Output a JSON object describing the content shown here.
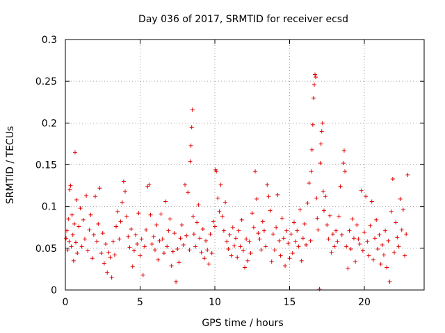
{
  "chart_data": {
    "type": "scatter",
    "title": "Day 036 of 2017, SRMTID for receiver ecsd",
    "xlabel": "GPS time / hours",
    "ylabel": "SRMTID / TECUs",
    "xlim": [
      0,
      24
    ],
    "ylim": [
      0,
      0.3
    ],
    "xticks": [
      0,
      5,
      10,
      15,
      20
    ],
    "xtick_labels": [
      "0",
      "5",
      "10",
      "15",
      "20"
    ],
    "yticks": [
      0,
      0.05,
      0.1,
      0.15,
      0.2,
      0.25,
      0.3
    ],
    "ytick_labels": [
      "0",
      "0.05",
      "0.1",
      "0.15",
      "0.2",
      "0.25",
      "0.3"
    ],
    "grid": true,
    "marker": "+",
    "marker_color": "#e00000",
    "series": [
      {
        "name": "SRMTID",
        "points": [
          [
            0.05,
            0.062
          ],
          [
            0.1,
            0.071
          ],
          [
            0.15,
            0.048
          ],
          [
            0.2,
            0.085
          ],
          [
            0.25,
            0.058
          ],
          [
            0.3,
            0.12
          ],
          [
            0.35,
            0.125
          ],
          [
            0.4,
            0.052
          ],
          [
            0.45,
            0.09
          ],
          [
            0.5,
            0.066
          ],
          [
            0.55,
            0.035
          ],
          [
            0.6,
            0.079
          ],
          [
            0.65,
            0.165
          ],
          [
            0.7,
            0.057
          ],
          [
            0.75,
            0.108
          ],
          [
            0.8,
            0.044
          ],
          [
            0.9,
            0.076
          ],
          [
            1.0,
            0.098
          ],
          [
            1.1,
            0.052
          ],
          [
            1.2,
            0.084
          ],
          [
            1.3,
            0.061
          ],
          [
            1.4,
            0.113
          ],
          [
            1.5,
            0.047
          ],
          [
            1.6,
            0.072
          ],
          [
            1.7,
            0.09
          ],
          [
            1.8,
            0.038
          ],
          [
            1.9,
            0.066
          ],
          [
            2.0,
            0.112
          ],
          [
            2.1,
            0.058
          ],
          [
            2.2,
            0.079
          ],
          [
            2.3,
            0.122
          ],
          [
            2.4,
            0.044
          ],
          [
            2.5,
            0.068
          ],
          [
            2.6,
            0.032
          ],
          [
            2.7,
            0.055
          ],
          [
            2.8,
            0.021
          ],
          [
            2.9,
            0.045
          ],
          [
            3.0,
            0.039
          ],
          [
            3.1,
            0.015
          ],
          [
            3.2,
            0.058
          ],
          [
            3.3,
            0.042
          ],
          [
            3.4,
            0.076
          ],
          [
            3.5,
            0.094
          ],
          [
            3.6,
            0.061
          ],
          [
            3.7,
            0.082
          ],
          [
            3.8,
            0.105
          ],
          [
            3.9,
            0.13
          ],
          [
            4.0,
            0.118
          ],
          [
            4.1,
            0.088
          ],
          [
            4.2,
            0.064
          ],
          [
            4.3,
            0.051
          ],
          [
            4.4,
            0.073
          ],
          [
            4.5,
            0.028
          ],
          [
            4.6,
            0.047
          ],
          [
            4.7,
            0.066
          ],
          [
            4.8,
            0.055
          ],
          [
            4.9,
            0.092
          ],
          [
            5.0,
            0.041
          ],
          [
            5.1,
            0.061
          ],
          [
            5.2,
            0.018
          ],
          [
            5.3,
            0.052
          ],
          [
            5.4,
            0.072
          ],
          [
            5.5,
            0.124
          ],
          [
            5.6,
            0.126
          ],
          [
            5.7,
            0.09
          ],
          [
            5.8,
            0.055
          ],
          [
            5.9,
            0.064
          ],
          [
            6.0,
            0.048
          ],
          [
            6.1,
            0.078
          ],
          [
            6.2,
            0.036
          ],
          [
            6.3,
            0.059
          ],
          [
            6.4,
            0.091
          ],
          [
            6.5,
            0.061
          ],
          [
            6.6,
            0.044
          ],
          [
            6.7,
            0.106
          ],
          [
            6.8,
            0.052
          ],
          [
            6.9,
            0.071
          ],
          [
            7.0,
            0.085
          ],
          [
            7.1,
            0.029
          ],
          [
            7.2,
            0.046
          ],
          [
            7.3,
            0.068
          ],
          [
            7.4,
            0.01
          ],
          [
            7.5,
            0.049
          ],
          [
            7.6,
            0.033
          ],
          [
            7.7,
            0.062
          ],
          [
            7.8,
            0.078
          ],
          [
            7.9,
            0.054
          ],
          [
            8.0,
            0.126
          ],
          [
            8.1,
            0.065
          ],
          [
            8.2,
            0.117
          ],
          [
            8.3,
            0.048
          ],
          [
            8.35,
            0.154
          ],
          [
            8.4,
            0.173
          ],
          [
            8.45,
            0.195
          ],
          [
            8.5,
            0.216
          ],
          [
            8.55,
            0.088
          ],
          [
            8.6,
            0.067
          ],
          [
            8.7,
            0.052
          ],
          [
            8.8,
            0.081
          ],
          [
            8.9,
            0.102
          ],
          [
            9.0,
            0.062
          ],
          [
            9.1,
            0.045
          ],
          [
            9.2,
            0.073
          ],
          [
            9.3,
            0.038
          ],
          [
            9.4,
            0.059
          ],
          [
            9.5,
            0.048
          ],
          [
            9.6,
            0.031
          ],
          [
            9.7,
            0.067
          ],
          [
            9.8,
            0.044
          ],
          [
            9.9,
            0.082
          ],
          [
            10.0,
            0.076
          ],
          [
            10.05,
            0.144
          ],
          [
            10.1,
            0.142
          ],
          [
            10.2,
            0.11
          ],
          [
            10.3,
            0.094
          ],
          [
            10.4,
            0.126
          ],
          [
            10.5,
            0.088
          ],
          [
            10.6,
            0.071
          ],
          [
            10.7,
            0.105
          ],
          [
            10.8,
            0.058
          ],
          [
            10.9,
            0.049
          ],
          [
            11.0,
            0.066
          ],
          [
            11.1,
            0.041
          ],
          [
            11.2,
            0.075
          ],
          [
            11.3,
            0.053
          ],
          [
            11.4,
            0.062
          ],
          [
            11.5,
            0.039
          ],
          [
            11.6,
            0.071
          ],
          [
            11.7,
            0.052
          ],
          [
            11.8,
            0.084
          ],
          [
            11.9,
            0.047
          ],
          [
            12.0,
            0.027
          ],
          [
            12.1,
            0.061
          ],
          [
            12.2,
            0.035
          ],
          [
            12.3,
            0.058
          ],
          [
            12.4,
            0.044
          ],
          [
            12.5,
            0.092
          ],
          [
            12.6,
            0.075
          ],
          [
            12.7,
            0.142
          ],
          [
            12.8,
            0.109
          ],
          [
            12.9,
            0.068
          ],
          [
            13.0,
            0.061
          ],
          [
            13.1,
            0.048
          ],
          [
            13.2,
            0.082
          ],
          [
            13.3,
            0.071
          ],
          [
            13.4,
            0.052
          ],
          [
            13.5,
            0.126
          ],
          [
            13.6,
            0.112
          ],
          [
            13.7,
            0.095
          ],
          [
            13.8,
            0.034
          ],
          [
            13.9,
            0.067
          ],
          [
            14.0,
            0.048
          ],
          [
            14.1,
            0.075
          ],
          [
            14.2,
            0.114
          ],
          [
            14.3,
            0.059
          ],
          [
            14.4,
            0.041
          ],
          [
            14.5,
            0.086
          ],
          [
            14.6,
            0.062
          ],
          [
            14.7,
            0.029
          ],
          [
            14.8,
            0.071
          ],
          [
            14.9,
            0.056
          ],
          [
            15.0,
            0.038
          ],
          [
            15.1,
            0.067
          ],
          [
            15.2,
            0.044
          ],
          [
            15.3,
            0.081
          ],
          [
            15.4,
            0.058
          ],
          [
            15.5,
            0.071
          ],
          [
            15.6,
            0.052
          ],
          [
            15.7,
            0.096
          ],
          [
            15.8,
            0.035
          ],
          [
            15.9,
            0.062
          ],
          [
            16.0,
            0.079
          ],
          [
            16.1,
            0.054
          ],
          [
            16.2,
            0.104
          ],
          [
            16.3,
            0.128
          ],
          [
            16.4,
            0.059
          ],
          [
            16.45,
            0.142
          ],
          [
            16.5,
            0.168
          ],
          [
            16.55,
            0.198
          ],
          [
            16.6,
            0.23
          ],
          [
            16.65,
            0.246
          ],
          [
            16.7,
            0.258
          ],
          [
            16.75,
            0.255
          ],
          [
            16.8,
            0.11
          ],
          [
            16.85,
            0.086
          ],
          [
            16.9,
            0.072
          ],
          [
            17.0,
            0.001
          ],
          [
            17.05,
            0.152
          ],
          [
            17.1,
            0.175
          ],
          [
            17.15,
            0.19
          ],
          [
            17.2,
            0.2
          ],
          [
            17.25,
            0.118
          ],
          [
            17.3,
            0.095
          ],
          [
            17.4,
            0.112
          ],
          [
            17.5,
            0.078
          ],
          [
            17.6,
            0.061
          ],
          [
            17.7,
            0.089
          ],
          [
            17.8,
            0.045
          ],
          [
            17.9,
            0.067
          ],
          [
            18.0,
            0.052
          ],
          [
            18.1,
            0.071
          ],
          [
            18.2,
            0.058
          ],
          [
            18.3,
            0.088
          ],
          [
            18.4,
            0.124
          ],
          [
            18.5,
            0.066
          ],
          [
            18.6,
            0.152
          ],
          [
            18.65,
            0.167
          ],
          [
            18.7,
            0.142
          ],
          [
            18.8,
            0.052
          ],
          [
            18.9,
            0.026
          ],
          [
            19.0,
            0.071
          ],
          [
            19.1,
            0.049
          ],
          [
            19.2,
            0.085
          ],
          [
            19.3,
            0.062
          ],
          [
            19.4,
            0.034
          ],
          [
            19.5,
            0.078
          ],
          [
            19.6,
            0.061
          ],
          [
            19.7,
            0.055
          ],
          [
            19.8,
            0.119
          ],
          [
            19.9,
            0.047
          ],
          [
            20.0,
            0.069
          ],
          [
            20.1,
            0.112
          ],
          [
            20.2,
            0.058
          ],
          [
            20.3,
            0.041
          ],
          [
            20.4,
            0.077
          ],
          [
            20.5,
            0.106
          ],
          [
            20.6,
            0.036
          ],
          [
            20.7,
            0.062
          ],
          [
            20.8,
            0.084
          ],
          [
            20.9,
            0.049
          ],
          [
            21.0,
            0.066
          ],
          [
            21.1,
            0.031
          ],
          [
            21.2,
            0.054
          ],
          [
            21.3,
            0.042
          ],
          [
            21.4,
            0.071
          ],
          [
            21.5,
            0.027
          ],
          [
            21.6,
            0.059
          ],
          [
            21.7,
            0.01
          ],
          [
            21.8,
            0.094
          ],
          [
            21.9,
            0.133
          ],
          [
            22.0,
            0.045
          ],
          [
            22.1,
            0.081
          ],
          [
            22.2,
            0.063
          ],
          [
            22.3,
            0.052
          ],
          [
            22.4,
            0.109
          ],
          [
            22.5,
            0.072
          ],
          [
            22.6,
            0.096
          ],
          [
            22.7,
            0.041
          ],
          [
            22.8,
            0.067
          ],
          [
            22.9,
            0.138
          ]
        ]
      }
    ]
  }
}
